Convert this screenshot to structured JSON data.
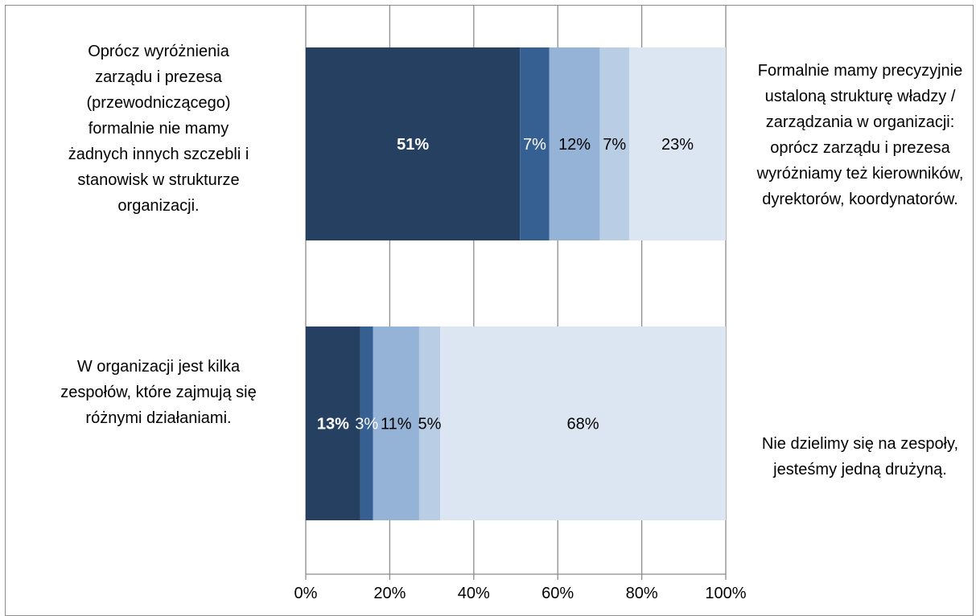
{
  "chart_data": {
    "type": "bar",
    "orientation": "horizontal",
    "stacked": true,
    "categories": [
      "Oprócz wyróżnienia zarządu i prezesa (przewodniczącego) formalnie nie mamy żadnych innych szczebli i stanowisk w strukturze organizacji.",
      "W organizacji jest kilka zespołów, które zajmują się różnymi działaniami."
    ],
    "right_labels": [
      "Formalnie mamy precyzyjnie ustaloną strukturę władzy / zarządzania w organizacji: oprócz zarządu i prezesa wyróżniamy też kierowników, dyrektorów, koordynatorów.",
      "Nie dzielimy się na zespoły, jesteśmy jedną drużyną."
    ],
    "series": [
      {
        "color": "#254061",
        "values": [
          51,
          13
        ]
      },
      {
        "color": "#376092",
        "values": [
          7,
          3
        ]
      },
      {
        "color": "#95b3d7",
        "values": [
          12,
          11
        ]
      },
      {
        "color": "#b9cde5",
        "values": [
          7,
          5
        ]
      },
      {
        "color": "#dce6f2",
        "values": [
          23,
          68
        ]
      }
    ],
    "data_labels": [
      [
        "51%",
        "7%",
        "12%",
        "7%",
        "23%"
      ],
      [
        "13%",
        "3%",
        "11%",
        "5%",
        "68%"
      ]
    ],
    "x_ticks": [
      "0%",
      "20%",
      "40%",
      "60%",
      "80%",
      "100%"
    ],
    "xlim": [
      0,
      100
    ],
    "grid": true,
    "legend": "none",
    "title": "",
    "xlabel": "",
    "ylabel": ""
  }
}
